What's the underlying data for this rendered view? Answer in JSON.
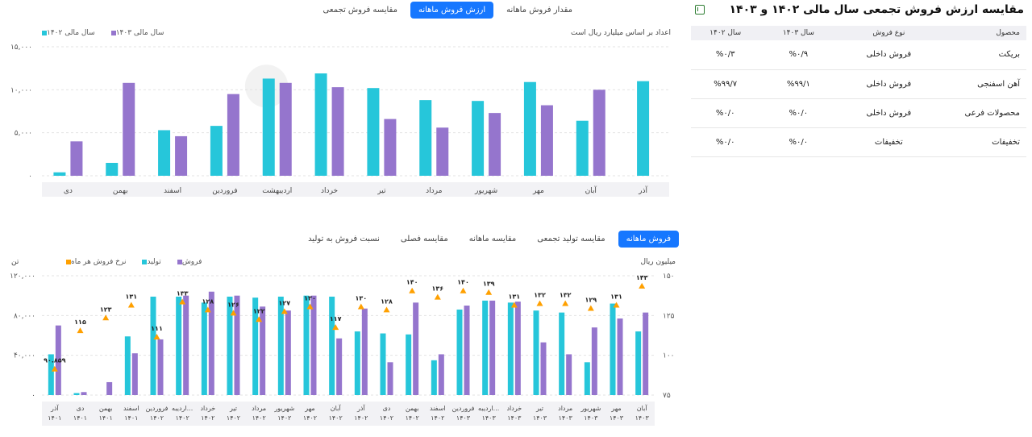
{
  "top_tabs": [
    {
      "label": "مقدار فروش ماهانه",
      "active": false
    },
    {
      "label": "ارزش فروش ماهانه",
      "active": true
    },
    {
      "label": "مقایسه فروش تجمعی",
      "active": false
    }
  ],
  "chart1": {
    "note": "اعداد بر اساس میلیارد ریال است",
    "legend": [
      {
        "label": "سال مالی ۱۴۰۳",
        "color": "#9575cd"
      },
      {
        "label": "سال مالی ۱۴۰۲",
        "color": "#26c6da"
      }
    ]
  },
  "chart_data": [
    {
      "type": "bar",
      "categories": [
        "آذر",
        "آبان",
        "مهر",
        "شهریور",
        "مرداد",
        "تیر",
        "خرداد",
        "اردیبهشت",
        "فروردین",
        "اسفند",
        "بهمن",
        "دی"
      ],
      "series": [
        {
          "name": "سال مالی ۱۴۰۲",
          "color": "#26c6da",
          "values": [
            11000,
            6400,
            10900,
            8700,
            8800,
            10200,
            11900,
            11300,
            5800,
            5300,
            1500,
            400
          ]
        },
        {
          "name": "سال مالی ۱۴۰۳",
          "color": "#9575cd",
          "values": [
            null,
            10000,
            8200,
            7300,
            5600,
            6600,
            10300,
            10800,
            9500,
            4600,
            10800,
            4000
          ]
        }
      ],
      "yticks": [
        "۱۵,۰۰۰",
        "۱۰,۰۰۰",
        "۵,۰۰۰",
        "۰"
      ],
      "ylim": [
        0,
        15000
      ]
    },
    {
      "type": "bar",
      "categories": [
        "آبان ۱۴۰۳",
        "مهر ۱۴۰۳",
        "شهریور ۱۴۰۳",
        "مرداد ۱۴۰۳",
        "تیر ۱۴۰۳",
        "خرداد ۱۴۰۳",
        "اردیبه... ۱۴۰۳",
        "فروردین ۱۴۰۳",
        "اسفند ۱۴۰۲",
        "بهمن ۱۴۰۲",
        "دی ۱۴۰۲",
        "آذر ۱۴۰۲",
        "آبان ۱۴۰۲",
        "مهر ۱۴۰۲",
        "شهریور ۱۴۰۲",
        "مرداد ۱۴۰۲",
        "تیر ۱۴۰۲",
        "خرداد ۱۴۰۲",
        "اردیبه... ۱۴۰۲",
        "فروردین ۱۴۰۲",
        "اسفند ۱۴۰۱",
        "بهمن ۱۴۰۱",
        "دی ۱۴۰۱",
        "آذر ۱۴۰۱"
      ],
      "series": [
        {
          "name": "فروش",
          "color": "#9575cd",
          "values": [
            83000,
            77000,
            68000,
            41000,
            53000,
            94000,
            95000,
            90000,
            41000,
            93000,
            33000,
            87000,
            57000,
            100000,
            85000,
            89000,
            100000,
            104000,
            100000,
            56000,
            42000,
            13000,
            3000,
            70000
          ]
        },
        {
          "name": "تولید",
          "color": "#26c6da",
          "values": [
            64000,
            92000,
            33000,
            83000,
            85000,
            93000,
            95000,
            86000,
            35000,
            61000,
            62000,
            64000,
            99000,
            100000,
            99000,
            98000,
            99000,
            93000,
            99000,
            99000,
            59000,
            0,
            2000,
            41000
          ]
        },
        {
          "name": "نرخ فروش هر ماه",
          "color": "#ffa000",
          "values": [
            143,
            131,
            129,
            132,
            132,
            131,
            139,
            140,
            136,
            140,
            128,
            130,
            117,
            130,
            127,
            122,
            126,
            128,
            133,
            111,
            131,
            123,
            115,
            90.859
          ]
        }
      ],
      "labels": [
        "۱۴۳",
        "۱۳۱",
        "۱۲۹",
        "۱۳۲",
        "۱۳۲",
        "۱۳۱",
        "۱۳۹",
        "۱۴۰",
        "۱۳۶",
        "۱۴۰",
        "۱۲۸",
        "۱۳۰",
        "۱۱۷",
        "۱۳۰",
        "۱۲۷",
        "۱۲۲",
        "۱۲۶",
        "۱۲۸",
        "۱۳۳",
        "۱۱۱",
        "۱۳۱",
        "۱۲۳",
        "۱۱۵",
        "۹۰.۸۵۹"
      ],
      "yticks_left": [
        "۱۲۰,۰۰۰",
        "۸۰,۰۰۰",
        "۴۰,۰۰۰",
        "۰"
      ],
      "yticks_right": [
        "۱۵۰",
        "۱۲۵",
        "۱۰۰",
        "۷۵"
      ],
      "ylim_left": [
        0,
        120000
      ],
      "ylim_right": [
        75,
        150
      ]
    }
  ],
  "table": {
    "title": "مقایسه ارزش فروش تجمعی سال مالی ۱۴۰۲ و ۱۴۰۳",
    "headers": [
      "محصول",
      "نوع فروش",
      "سال ۱۴۰۳",
      "سال ۱۴۰۲"
    ],
    "rows": [
      [
        "بریکت",
        "فروش داخلی",
        "%۰/۹",
        "%۰/۳"
      ],
      [
        "آهن اسفنجی",
        "فروش داخلی",
        "%۹۹/۱",
        "%۹۹/۷"
      ],
      [
        "محصولات فرعی",
        "فروش داخلی",
        "%۰/۰",
        "%۰/۰"
      ],
      [
        "تخفیفات",
        "تخفیفات",
        "%۰/۰",
        "%۰/۰"
      ]
    ]
  },
  "bottom_tabs": [
    {
      "label": "فروش ماهانه",
      "active": true
    },
    {
      "label": "مقایسه تولید تجمعی",
      "active": false
    },
    {
      "label": "مقایسه ماهانه",
      "active": false
    },
    {
      "label": "مقایسه فصلی",
      "active": false
    },
    {
      "label": "نسبت فروش به تولید",
      "active": false
    }
  ],
  "chart2": {
    "left_unit": "تن",
    "right_unit": "میلیون ریال",
    "legend": [
      {
        "label": "فروش",
        "color": "#9575cd"
      },
      {
        "label": "تولید",
        "color": "#26c6da"
      },
      {
        "label": "نرخ فروش هر ماه",
        "color": "#ffa000"
      }
    ]
  }
}
